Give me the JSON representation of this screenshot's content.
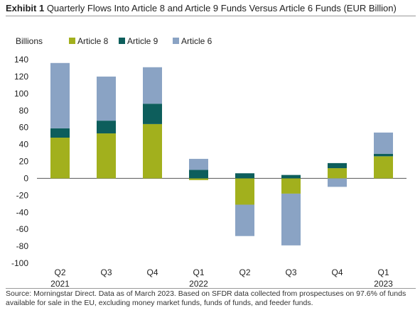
{
  "title": {
    "prefix": "Exhibit 1",
    "text": "Quarterly Flows Into Article 8 and Article 9 Funds Versus Article 6 Funds (EUR Billion)"
  },
  "source": "Source: Morningstar Direct. Data as of March 2023. Based on SFDR data collected from prospectuses on 97.6% of funds available for sale in the EU, excluding money market funds, funds of funds, and feeder funds.",
  "colors": {
    "Article 8": "#a2b01d",
    "Article 9": "#0d5e5c",
    "Article 6": "#8aa3c4"
  },
  "chart_data": {
    "type": "bar",
    "stacked": true,
    "ylabel": "Billions",
    "ylim": [
      -100,
      140
    ],
    "yticks": [
      140,
      120,
      100,
      80,
      60,
      40,
      20,
      0,
      -20,
      -40,
      -60,
      -80,
      -100
    ],
    "grid": false,
    "legend_position": "top",
    "categories": [
      "Q2",
      "Q3",
      "Q4",
      "Q1",
      "Q2",
      "Q3",
      "Q4",
      "Q1"
    ],
    "year_labels": [
      "2021",
      "",
      "",
      "2022",
      "",
      "",
      "",
      "2023"
    ],
    "series": [
      {
        "name": "Article 8",
        "values": [
          48,
          53,
          64,
          -2,
          -31,
          -18,
          12,
          26
        ]
      },
      {
        "name": "Article 9",
        "values": [
          11,
          15,
          24,
          10,
          6,
          4,
          6,
          3
        ]
      },
      {
        "name": "Article 6",
        "values": [
          77,
          52,
          43,
          13,
          -37,
          -61,
          -10,
          25
        ]
      }
    ]
  }
}
